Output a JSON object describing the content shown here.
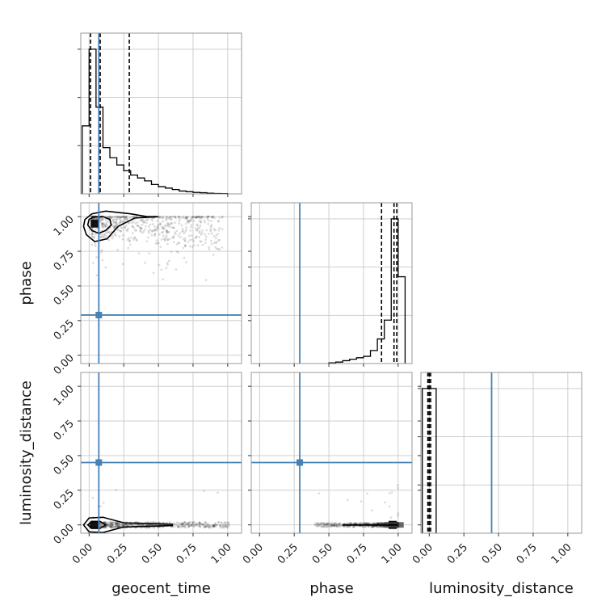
{
  "chart_data": {
    "type": "corner",
    "parameters": [
      "geocent_time",
      "phase",
      "luminosity_distance"
    ],
    "truths": {
      "geocent_time": 0.07,
      "phase": 0.29,
      "luminosity_distance": 0.45
    },
    "axis_ticks": [
      "0.00",
      "0.25",
      "0.50",
      "0.75",
      "1.00"
    ],
    "axis_limits": [
      -0.06,
      1.1
    ],
    "grid": true,
    "histograms": [
      {
        "parameter": "geocent_time",
        "bin_edges": [
          -0.05,
          0.0,
          0.05,
          0.1,
          0.15,
          0.2,
          0.25,
          0.3,
          0.35,
          0.4,
          0.45,
          0.5,
          0.55,
          0.6,
          0.65,
          0.7,
          0.75,
          0.8,
          0.85,
          0.9,
          0.95,
          1.0
        ],
        "counts": [
          0.47,
          1.0,
          0.6,
          0.32,
          0.25,
          0.2,
          0.16,
          0.13,
          0.11,
          0.09,
          0.065,
          0.05,
          0.04,
          0.03,
          0.02,
          0.015,
          0.01,
          0.008,
          0.005,
          0.003,
          0.002
        ],
        "quantiles": [
          0.01,
          0.08,
          0.29
        ]
      },
      {
        "parameter": "phase",
        "bin_edges": [
          0.5,
          0.55,
          0.6,
          0.65,
          0.7,
          0.75,
          0.8,
          0.85,
          0.9,
          0.95,
          1.0,
          1.05
        ],
        "counts": [
          0.005,
          0.01,
          0.02,
          0.03,
          0.04,
          0.05,
          0.09,
          0.17,
          0.3,
          1.0,
          0.6
        ],
        "quantiles": [
          0.88,
          0.97,
          0.99
        ]
      },
      {
        "parameter": "luminosity_distance",
        "bin_edges": [
          -0.05,
          0.0,
          0.05
        ],
        "counts": [
          1.0,
          1.0
        ],
        "quantiles": [
          -0.01,
          0.0,
          0.01
        ]
      }
    ],
    "joint": [
      {
        "x": "geocent_time",
        "y": "phase",
        "density_peak": [
          0.04,
          0.95
        ],
        "contours": [
          {
            "level": 1,
            "points": [
              [
                0.0,
                0.98
              ],
              [
                0.04,
                1.0
              ],
              [
                0.1,
                1.0
              ],
              [
                0.15,
                0.98
              ],
              [
                0.16,
                0.94
              ],
              [
                0.12,
                0.9
              ],
              [
                0.07,
                0.88
              ],
              [
                0.02,
                0.9
              ],
              [
                -0.01,
                0.94
              ]
            ]
          },
          {
            "level": 2,
            "points": [
              [
                -0.03,
                0.98
              ],
              [
                0.02,
                1.02
              ],
              [
                0.12,
                1.04
              ],
              [
                0.3,
                1.02
              ],
              [
                0.42,
                1.0
              ],
              [
                0.5,
                1.0
              ],
              [
                0.33,
                0.99
              ],
              [
                0.21,
                0.93
              ],
              [
                0.13,
                0.84
              ],
              [
                0.04,
                0.82
              ],
              [
                -0.02,
                0.87
              ],
              [
                -0.04,
                0.93
              ]
            ]
          }
        ]
      },
      {
        "x": "geocent_time",
        "y": "luminosity_distance",
        "density_peak": [
          0.04,
          0.0
        ],
        "contours": [
          {
            "level": 1,
            "points": [
              [
                -0.01,
                0.0
              ],
              [
                0.02,
                0.025
              ],
              [
                0.08,
                0.025
              ],
              [
                0.12,
                0.0
              ],
              [
                0.08,
                -0.025
              ],
              [
                0.02,
                -0.025
              ]
            ]
          },
          {
            "level": 2,
            "points": [
              [
                -0.04,
                0.0
              ],
              [
                0.0,
                0.05
              ],
              [
                0.1,
                0.055
              ],
              [
                0.25,
                0.015
              ],
              [
                0.6,
                0.005
              ],
              [
                0.6,
                -0.005
              ],
              [
                0.25,
                -0.015
              ],
              [
                0.1,
                -0.055
              ],
              [
                0.0,
                -0.05
              ]
            ]
          }
        ]
      },
      {
        "x": "phase",
        "y": "luminosity_distance",
        "density_peak": [
          0.96,
          0.0
        ],
        "contours": []
      }
    ]
  }
}
